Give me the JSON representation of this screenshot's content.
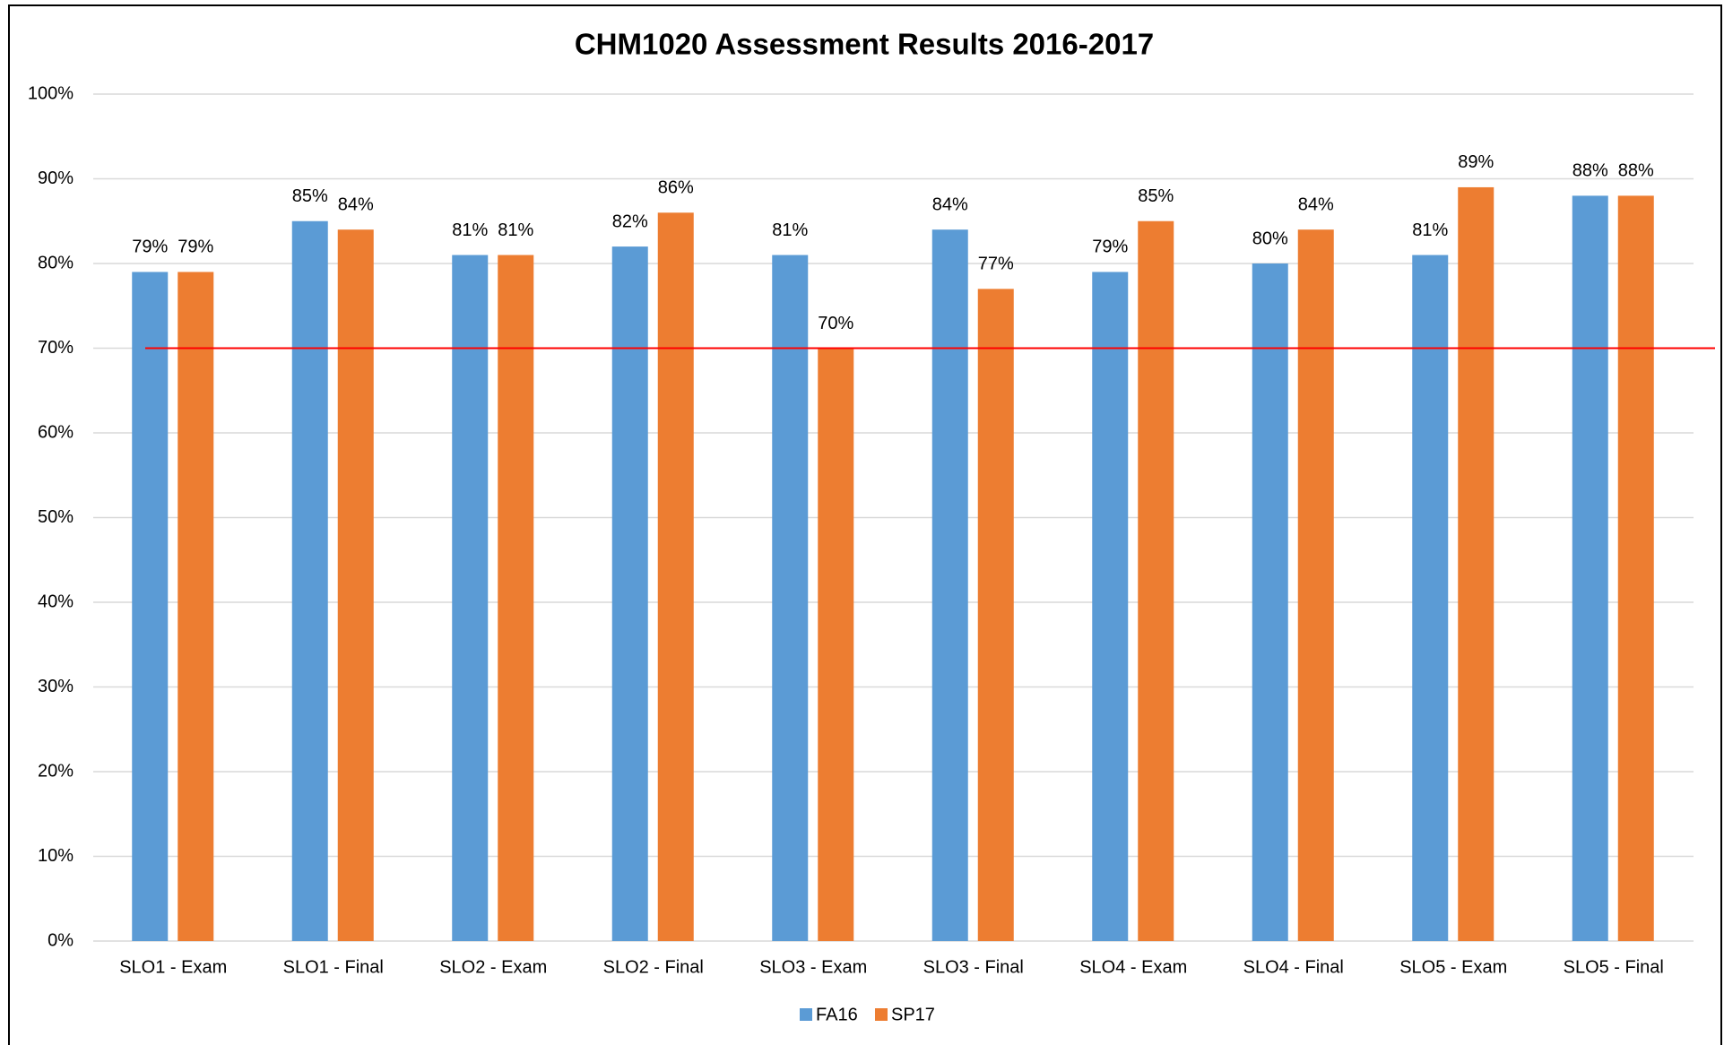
{
  "chart_data": {
    "type": "bar",
    "title": "CHM1020 Assessment Results 2016-2017",
    "categories": [
      "SLO1 - Exam",
      "SLO1 - Final",
      "SLO2 - Exam",
      "SLO2 - Final",
      "SLO3 - Exam",
      "SLO3 - Final",
      "SLO4 - Exam",
      "SLO4 - Final",
      "SLO5 - Exam",
      "SLO5 - Final"
    ],
    "series": [
      {
        "name": "FA16",
        "color": "#5b9bd5",
        "values": [
          79,
          85,
          81,
          82,
          81,
          84,
          79,
          80,
          81,
          88
        ],
        "value_labels": [
          "79%",
          "85%",
          "81%",
          "82%",
          "81%",
          "84%",
          "79%",
          "80%",
          "81%",
          "88%"
        ]
      },
      {
        "name": "SP17",
        "color": "#ed7d31",
        "values": [
          79,
          84,
          81,
          86,
          70,
          77,
          85,
          84,
          89,
          88
        ],
        "value_labels": [
          "79%",
          "84%",
          "81%",
          "86%",
          "70%",
          "77%",
          "85%",
          "84%",
          "89%",
          "88%"
        ]
      }
    ],
    "ylim": [
      0,
      100
    ],
    "yticks": [
      {
        "value": 0,
        "label": "0%"
      },
      {
        "value": 10,
        "label": "10%"
      },
      {
        "value": 20,
        "label": "20%"
      },
      {
        "value": 30,
        "label": "30%"
      },
      {
        "value": 40,
        "label": "40%"
      },
      {
        "value": 50,
        "label": "50%"
      },
      {
        "value": 60,
        "label": "60%"
      },
      {
        "value": 70,
        "label": "70%"
      },
      {
        "value": 80,
        "label": "80%"
      },
      {
        "value": 90,
        "label": "90%"
      },
      {
        "value": 100,
        "label": "100%"
      }
    ],
    "grid": true,
    "legend": "bottom",
    "reference_line": {
      "value": 70,
      "color": "#ff0000"
    }
  }
}
